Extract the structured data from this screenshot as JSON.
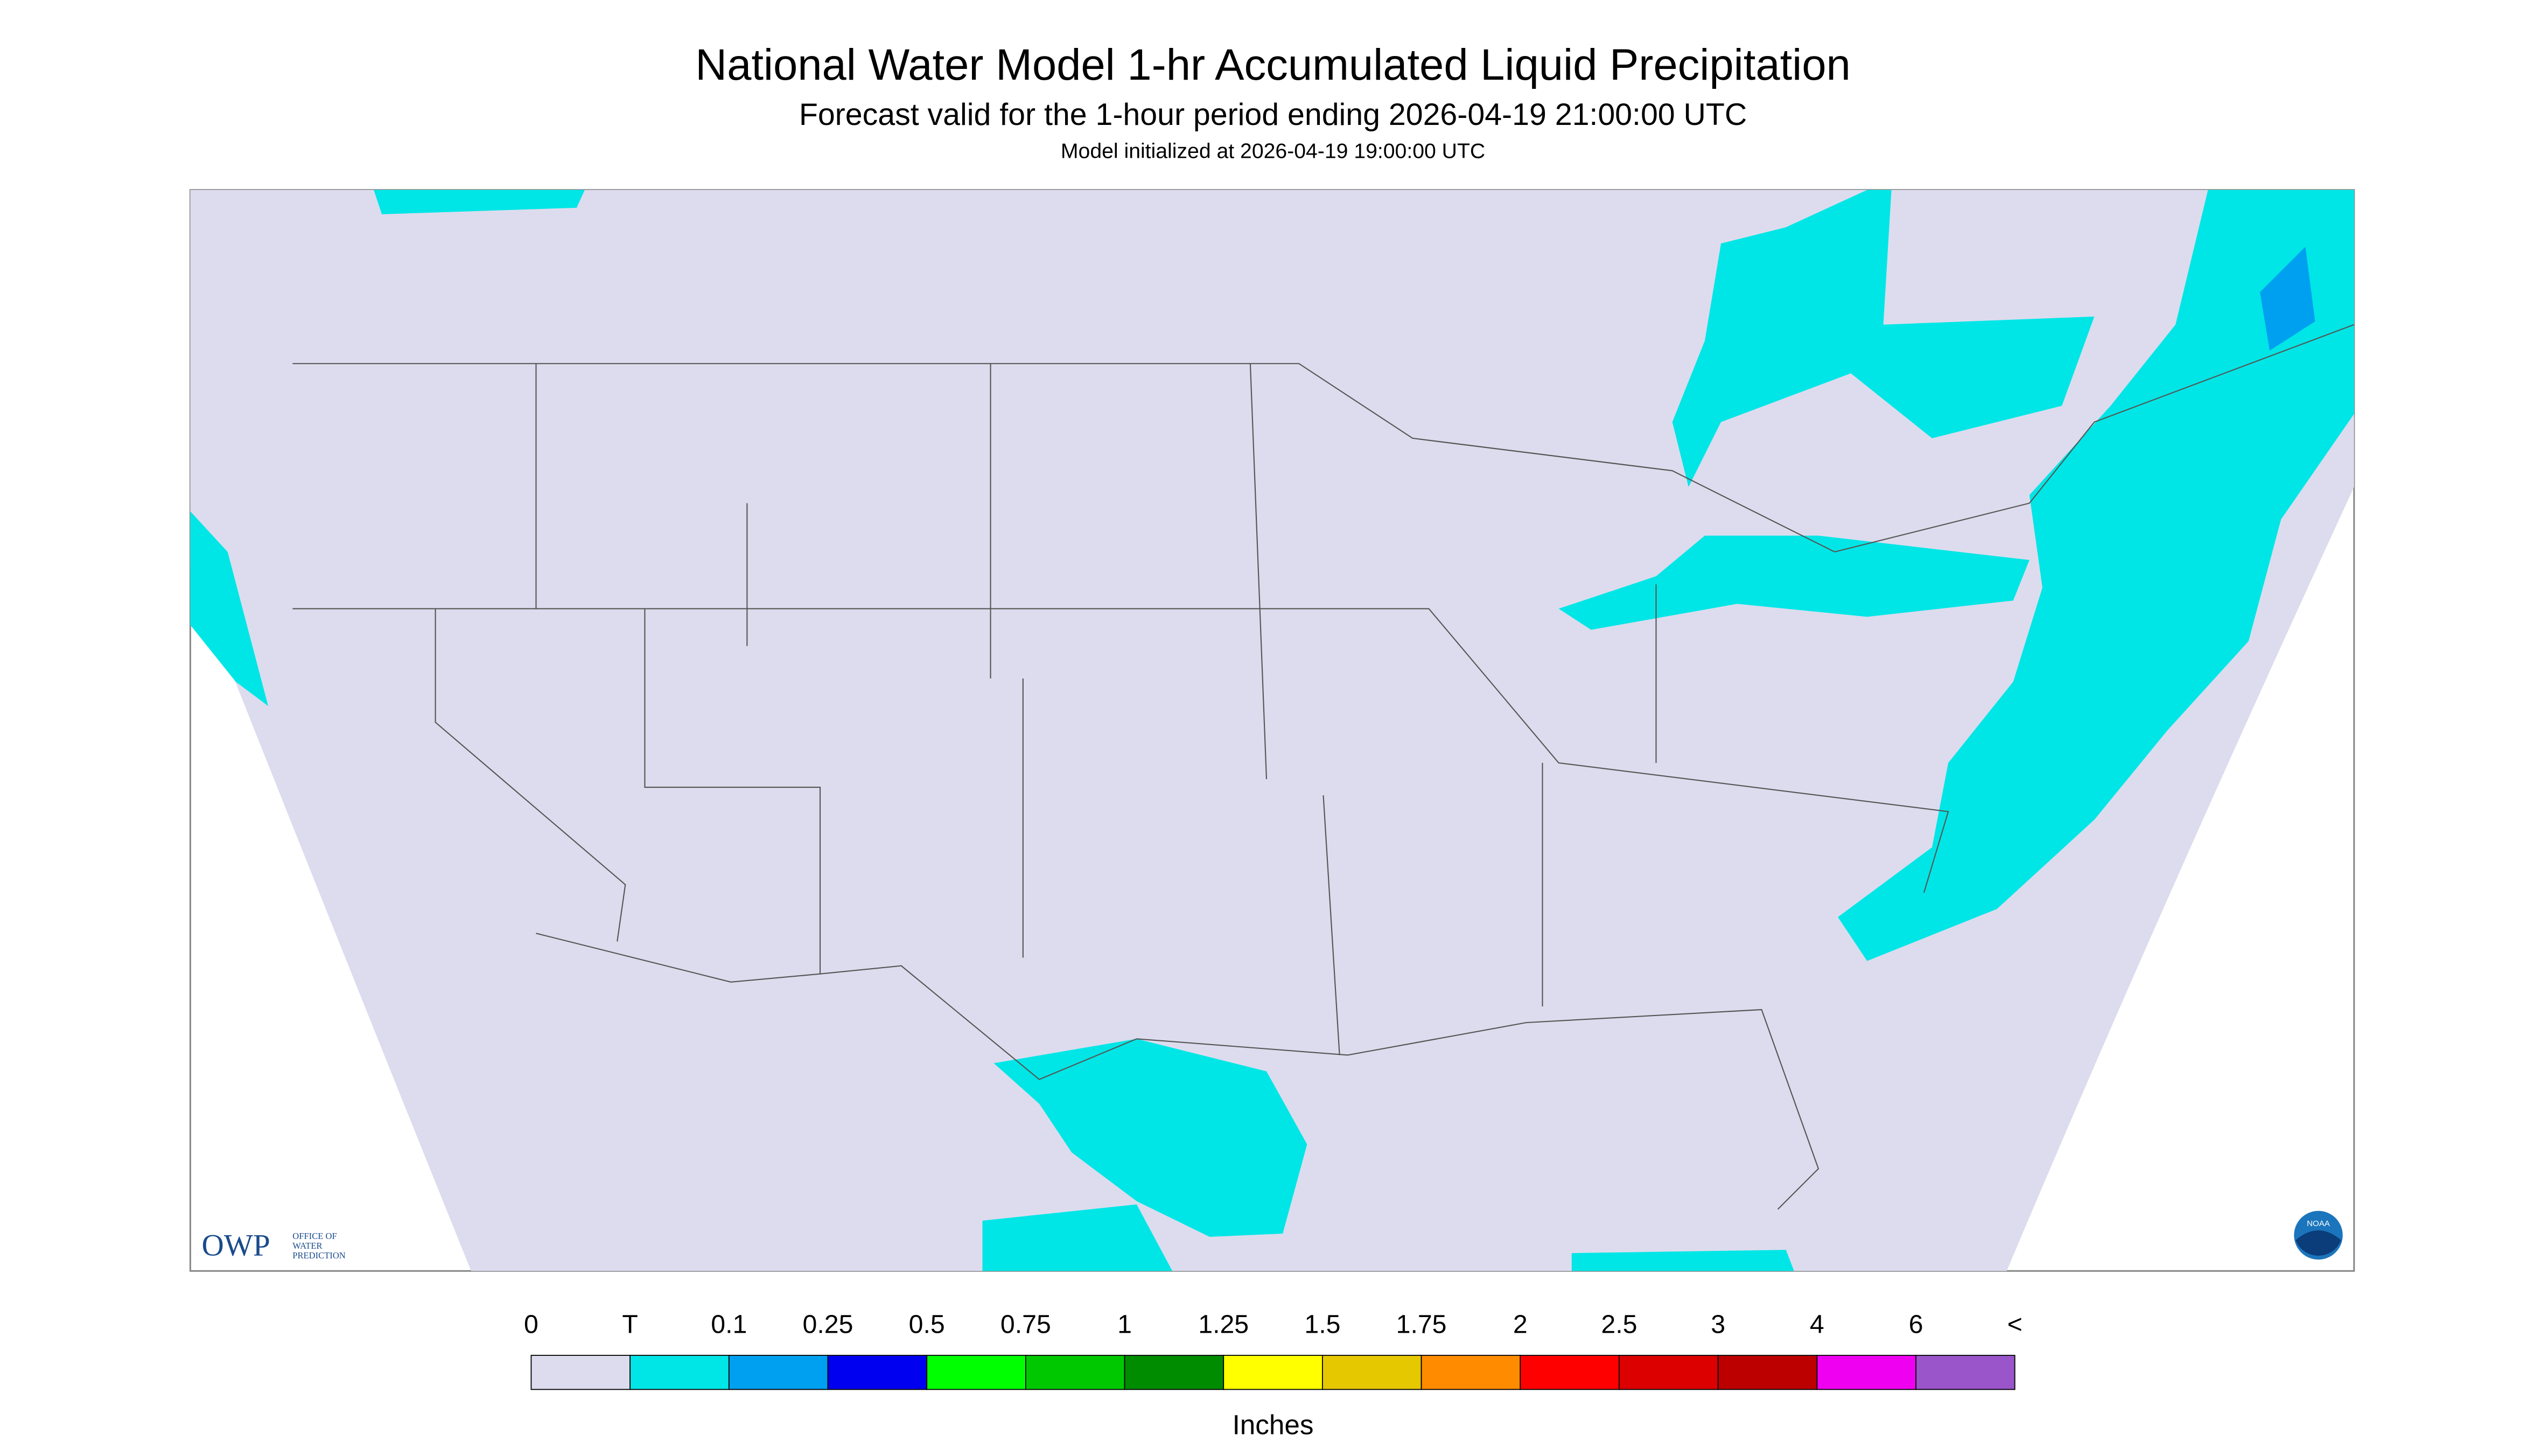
{
  "header": {
    "title": "National Water Model 1-hr Accumulated Liquid Precipitation",
    "subtitle": "Forecast valid for the 1-hour period ending 2026-04-19 21:00:00 UTC",
    "initialized": "Model initialized at 2026-04-19 19:00:00 UTC"
  },
  "logos": {
    "owp": "OWP",
    "owp_name": [
      "OFFICE OF",
      "WATER",
      "PREDICTION"
    ],
    "noaa": "NOAA"
  },
  "legend": {
    "labels": [
      "0",
      "T",
      "0.1",
      "0.25",
      "0.5",
      "0.75",
      "1",
      "1.25",
      "1.5",
      "1.75",
      "2",
      "2.5",
      "3",
      "4",
      "6",
      "<"
    ],
    "colors": [
      "#dcdcee",
      "#00e6e6",
      "#00a0f0",
      "#0000f0",
      "#00ff00",
      "#00c800",
      "#008c00",
      "#ffff00",
      "#e6c800",
      "#ff8c00",
      "#ff0000",
      "#dc0000",
      "#bc0000",
      "#f000f0",
      "#9955c9"
    ],
    "units": "Inches"
  }
}
